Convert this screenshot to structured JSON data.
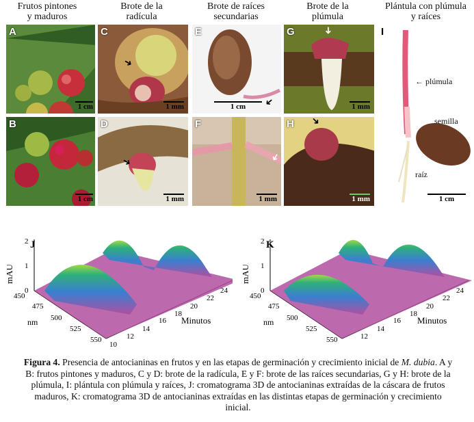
{
  "columns": [
    {
      "title_l1": "Frutos pintones",
      "title_l2": "y maduros"
    },
    {
      "title_l1": "Brote de la",
      "title_l2": "radícula"
    },
    {
      "title_l1": "Brote de raíces",
      "title_l2": "secundarias"
    },
    {
      "title_l1": "Brote de la",
      "title_l2": "plúmula"
    },
    {
      "title_l1": "Plántula con plúmula",
      "title_l2": "y raíces"
    }
  ],
  "panels": {
    "A": {
      "label": "A",
      "scale": "1 cm"
    },
    "B": {
      "label": "B",
      "scale": "1 cm"
    },
    "C": {
      "label": "C",
      "scale": "1 mm"
    },
    "D": {
      "label": "D",
      "scale": "1 mm"
    },
    "E": {
      "label": "E",
      "scale": "1 cm"
    },
    "F": {
      "label": "F",
      "scale": "1 mm"
    },
    "G": {
      "label": "G",
      "scale": "1 mm"
    },
    "H": {
      "label": "H",
      "scale": "1 mm"
    },
    "I": {
      "label": "I",
      "scale": "1 cm"
    }
  },
  "seedling_annotations": {
    "plumula": "plúmula",
    "semilla": "semilla",
    "raiz": "raíz"
  },
  "chromatograms": [
    {
      "label": "J",
      "ylabel": "mAU",
      "yticks": [
        "0",
        "1",
        "2"
      ],
      "xlabel": "nm",
      "xticks": [
        "450",
        "475",
        "500",
        "525",
        "550"
      ],
      "zlabel": "Minutos",
      "zticks": [
        "10",
        "12",
        "14",
        "16",
        "18",
        "20",
        "22",
        "24"
      ]
    },
    {
      "label": "K",
      "ylabel": "mAU",
      "yticks": [
        "0",
        "1",
        "2"
      ],
      "xlabel": "nm",
      "xticks": [
        "450",
        "475",
        "500",
        "525",
        "550"
      ],
      "zlabel": "Minutos",
      "zticks": [
        "12",
        "14",
        "16",
        "18",
        "20",
        "22",
        "24"
      ]
    }
  ],
  "caption": {
    "bold": "Figura 4.",
    "text_1": " Presencia de antocianinas en frutos y en las etapas de germinación y crecimiento inicial de ",
    "italic": "M. dubia",
    "text_2": ". A y B: frutos pintones y maduros, C y D: brote de la radícula, E y F: brote de las raíces secundarias, G y H: brote de la plúmula, I: plántula con plúmula y raíces, J: cromatograma 3D de antocianinas extraídas de la cáscara de frutos maduros, K: cromatograma 3D de antocianinas extraídas en las distintas etapas de germinación y crecimiento inicial."
  },
  "colors": {
    "surface_base": "#b04fa0",
    "surface_peak": "#3a7fd0",
    "peak_top": "#8fd24a"
  }
}
